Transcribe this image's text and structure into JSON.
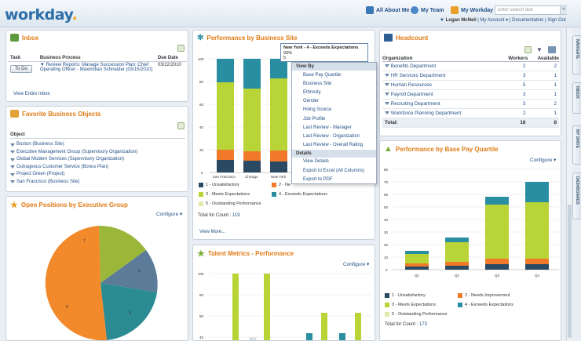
{
  "header": {
    "logo": "workday",
    "logo_dot": ".",
    "nav": [
      {
        "label": "All About Me",
        "icon": "person-icon"
      },
      {
        "label": "My Team",
        "icon": "team-icon"
      },
      {
        "label": "My Workday",
        "icon": "briefcase-icon"
      }
    ],
    "search_placeholder": "enter search text",
    "user": "Logan McNeil",
    "user_links": [
      "My Account ▾",
      "Documentation",
      "Sign Out"
    ]
  },
  "inbox": {
    "title": "Inbox",
    "columns": [
      "Task",
      "Business Process",
      "Due Date"
    ],
    "rows": [
      {
        "task": "To Do",
        "process": "Review Reports: Manage Succession Plan: Chief Operating Officer - Maximilian Schneider (03/15/2010)",
        "due": "03/22/2010"
      }
    ],
    "view_all": "View Entire Inbox"
  },
  "favorites": {
    "title": "Favorite Business Objects",
    "column": "Object",
    "items": [
      "Boston (Business Site)",
      "Executive Management Group (Supervisory Organization)",
      "Global Modern Services (Supervisory Organization)",
      "Outrageous Customer Service (Bonus Plan)",
      "Project Green (Project)",
      "San Francisco (Business Site)"
    ]
  },
  "open_positions": {
    "title": "Open Positions by Executive Group",
    "configure": "Configure ▾",
    "slice_labels": [
      "7",
      "2",
      "3",
      "5"
    ]
  },
  "perf_site": {
    "title": "Performance by Business Site",
    "x_labels": [
      "San Francisco",
      "Chicago",
      "New York"
    ],
    "y_ticks": [
      "100",
      "80",
      "60",
      "40",
      "20",
      "0"
    ],
    "legend": [
      "1 - Unsatisfactory",
      "2 - Ne",
      "3 - Meets Expectations",
      "4 - Exceeds Expectations",
      "5 - Outstanding Performance"
    ],
    "total_label": "Total for Count :",
    "total": "119",
    "view_more": "View More...",
    "tooltip": [
      "New York - 4 - Exceeds Expectations",
      "93%",
      "5"
    ]
  },
  "context_menu": {
    "section1": "View By",
    "items1": [
      "Base Pay Quartile",
      "Business Site",
      "Ethnicity",
      "Gender",
      "Hiring Source",
      "Job Profile",
      "Last Review - Manager",
      "Last Review - Organization",
      "Last Review - Overall Rating"
    ],
    "section2": "Details",
    "items2": [
      "View Details",
      "Export to Excel (All Columns)",
      "Export to PDF"
    ]
  },
  "talent": {
    "title": "Talent Metrics - Performance",
    "configure": "Configure ▾",
    "y_ticks": [
      "100",
      "80",
      "60",
      "40"
    ]
  },
  "headcount": {
    "title": "Headcount",
    "columns": [
      "Organization",
      "Workers",
      "Available"
    ],
    "rows": [
      {
        "org": "Benefits Department",
        "workers": "2",
        "available": "2"
      },
      {
        "org": "HR Services Department",
        "workers": "3",
        "available": "1"
      },
      {
        "org": "Human Resources",
        "workers": "5",
        "available": "1"
      },
      {
        "org": "Payroll Department",
        "workers": "3",
        "available": "1"
      },
      {
        "org": "Recruiting Department",
        "workers": "3",
        "available": "2"
      },
      {
        "org": "Workforce Planning Department",
        "workers": "2",
        "available": "1"
      }
    ],
    "total_label": "Total:",
    "total_workers": "18",
    "total_available": "8"
  },
  "quartile": {
    "title": "Performance by Base Pay Quartile",
    "configure": "Configure ▾",
    "x_labels": [
      "Q1",
      "Q2",
      "Q3",
      "Q4"
    ],
    "y_ticks": [
      "80",
      "70",
      "60",
      "50",
      "40",
      "30",
      "20",
      "10",
      "0"
    ],
    "legend": [
      "1 - Unsatisfactory",
      "2 - Needs Improvement",
      "3 - Meets Expectations",
      "4 - Exceeds Expectations",
      "5 - Outstanding Performance"
    ],
    "total_label": "Total for Count :",
    "total": "173"
  },
  "side_tabs": [
    "NAVIGATE",
    "INBOX",
    "MY DRIVE",
    "DASHBOARDS"
  ],
  "colors": {
    "unsatisfactory": "#2a4a63",
    "needs_improvement": "#f07a2a",
    "meets": "#b9d437",
    "exceeds": "#2a8ea3",
    "outstanding": "#dfe9a8"
  }
}
